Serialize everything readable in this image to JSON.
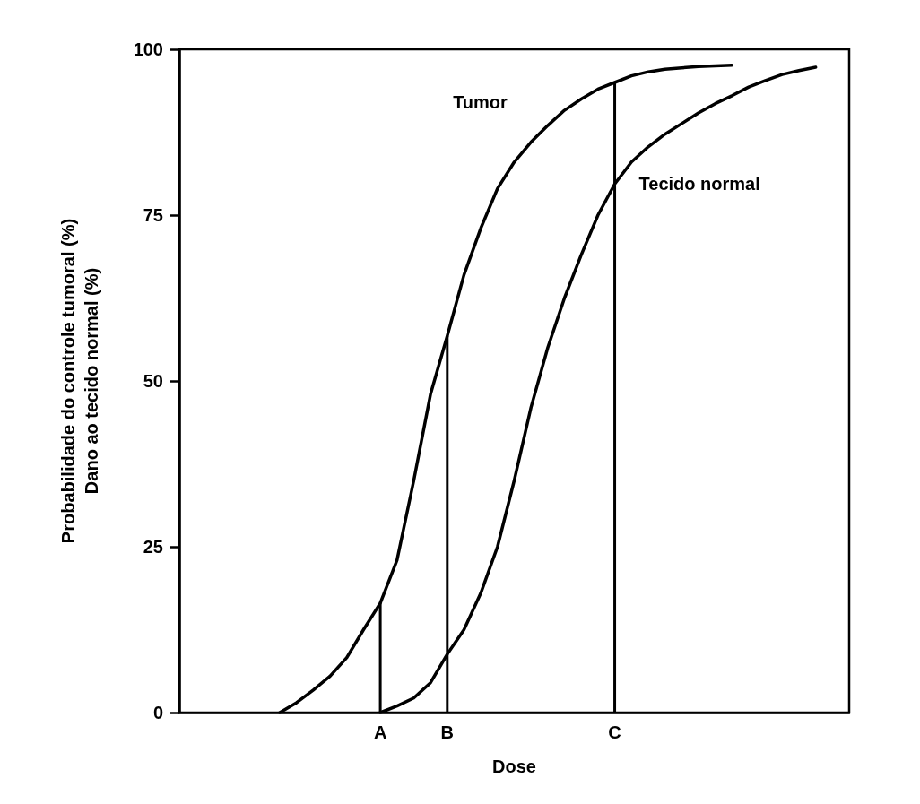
{
  "chart_data": {
    "type": "line",
    "xlabel": "Dose",
    "ylabel": "Probabilidade do controle tumoral (%)\nDano ao tecido normal (%)",
    "categories": [
      null,
      null,
      null,
      null,
      null,
      null,
      null,
      null,
      null,
      null,
      null,
      null,
      "A",
      null,
      null,
      null,
      "B",
      null,
      null,
      null,
      null,
      null,
      null,
      null,
      null,
      null,
      "C",
      null,
      null,
      null,
      null,
      null,
      null,
      null,
      null,
      null,
      null,
      null,
      null,
      null,
      null
    ],
    "ylim": [
      0,
      100
    ],
    "yticks": [
      0,
      25,
      50,
      75,
      100
    ],
    "grid": false,
    "legend": false,
    "marker": "none",
    "line_style": "solid",
    "series": [
      {
        "name": "Tumor",
        "color": "#000000",
        "values": [
          null,
          null,
          null,
          null,
          null,
          null,
          0,
          1.5,
          3.4,
          5.5,
          8.3,
          12.5,
          16.5,
          23,
          35,
          48,
          56.8,
          66,
          73,
          79,
          83,
          86,
          88.5,
          90.8,
          92.5,
          94,
          95,
          96,
          96.6,
          97,
          97.2,
          97.4,
          97.5,
          97.6,
          null,
          null,
          null,
          null,
          null,
          null,
          null
        ]
      },
      {
        "name": "Tecido normal",
        "color": "#000000",
        "values": [
          null,
          null,
          null,
          null,
          null,
          null,
          null,
          null,
          null,
          null,
          null,
          null,
          0,
          1,
          2.2,
          4.5,
          8.8,
          12.5,
          18,
          25,
          35,
          46,
          55,
          62.5,
          69,
          75,
          79.7,
          83,
          85.3,
          87.2,
          88.8,
          90.4,
          91.8,
          93,
          94.3,
          95.3,
          96.2,
          96.8,
          97.3,
          null,
          null
        ]
      },
      {
        "type": "bar",
        "color": "#000000",
        "values": [
          null,
          null,
          null,
          null,
          null,
          null,
          null,
          null,
          null,
          null,
          null,
          null,
          16.5,
          null,
          null,
          null,
          56.8,
          null,
          null,
          null,
          null,
          null,
          null,
          null,
          null,
          null,
          95,
          null,
          null,
          null,
          null,
          null,
          null,
          null,
          null,
          null,
          null,
          null,
          null,
          null,
          null
        ]
      }
    ]
  }
}
